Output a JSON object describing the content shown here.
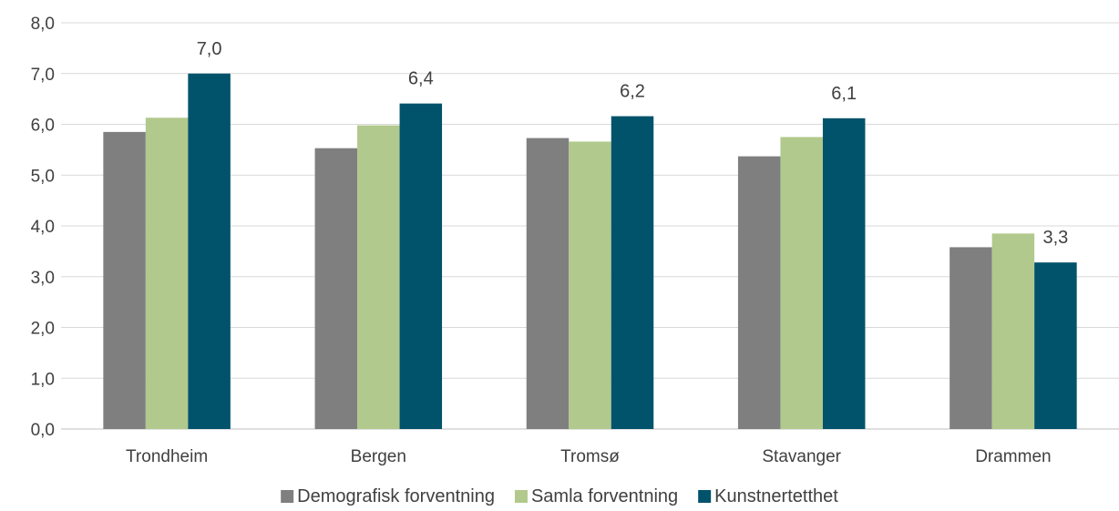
{
  "chart_data": {
    "type": "bar",
    "categories": [
      "Trondheim",
      "Bergen",
      "Tromsø",
      "Stavanger",
      "Drammen"
    ],
    "series": [
      {
        "name": "Demografisk forventning",
        "color": "#7f7f7f",
        "values": [
          5.85,
          5.53,
          5.73,
          5.37,
          3.58
        ]
      },
      {
        "name": "Samla forventning",
        "color": "#b1c98c",
        "values": [
          6.13,
          5.98,
          5.66,
          5.75,
          3.85
        ]
      },
      {
        "name": "Kunstnertetthet",
        "color": "#01536b",
        "values": [
          7.0,
          6.41,
          6.16,
          6.12,
          3.28
        ],
        "data_labels": [
          "7,0",
          "6,4",
          "6,2",
          "6,1",
          "3,3"
        ]
      }
    ],
    "y_ticks": [
      "0,0",
      "1,0",
      "2,0",
      "3,0",
      "4,0",
      "5,0",
      "6,0",
      "7,0",
      "8,0"
    ],
    "ylim": [
      0,
      8
    ],
    "grid": true,
    "legend_position": "bottom",
    "title": "",
    "xlabel": "",
    "ylabel": ""
  }
}
